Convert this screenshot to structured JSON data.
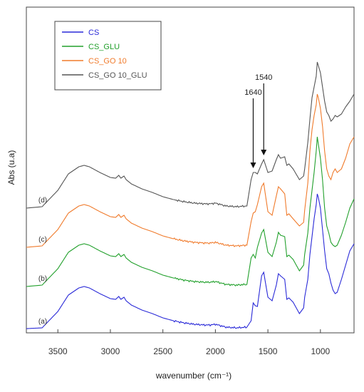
{
  "chart_data": {
    "type": "line",
    "title": "",
    "xlabel": "wavenumber (cm⁻¹)",
    "ylabel": "Abs (u.a)",
    "xlim": [
      3800,
      680
    ],
    "x_reversed": true,
    "xticks": [
      3500,
      3000,
      2500,
      2000,
      1500,
      1000
    ],
    "y_ticks_shown": false,
    "grid": false,
    "legend_position": "top-left",
    "series": [
      {
        "name": "CS",
        "curve_label": "(a)",
        "color": "#2a2ad8",
        "offset": 0,
        "points": [
          [
            3800,
            0.9
          ],
          [
            3650,
            2
          ],
          [
            3500,
            25
          ],
          [
            3400,
            48
          ],
          [
            3300,
            58
          ],
          [
            3250,
            60
          ],
          [
            3200,
            58
          ],
          [
            3100,
            50
          ],
          [
            3000,
            43
          ],
          [
            2950,
            42
          ],
          [
            2920,
            46
          ],
          [
            2900,
            42
          ],
          [
            2870,
            45
          ],
          [
            2850,
            40
          ],
          [
            2800,
            34
          ],
          [
            2700,
            27
          ],
          [
            2600,
            22
          ],
          [
            2500,
            16
          ],
          [
            2400,
            12
          ],
          [
            2300,
            9
          ],
          [
            2200,
            7
          ],
          [
            2100,
            6
          ],
          [
            2050,
            6
          ],
          [
            2000,
            7
          ],
          [
            1950,
            5
          ],
          [
            1900,
            3
          ],
          [
            1800,
            2
          ],
          [
            1700,
            3
          ],
          [
            1660,
            12
          ],
          [
            1640,
            37
          ],
          [
            1620,
            33
          ],
          [
            1600,
            32
          ],
          [
            1560,
            75
          ],
          [
            1540,
            80
          ],
          [
            1500,
            45
          ],
          [
            1460,
            40
          ],
          [
            1420,
            62
          ],
          [
            1400,
            78
          ],
          [
            1380,
            75
          ],
          [
            1340,
            70
          ],
          [
            1320,
            42
          ],
          [
            1300,
            44
          ],
          [
            1260,
            38
          ],
          [
            1200,
            22
          ],
          [
            1160,
            30
          ],
          [
            1150,
            45
          ],
          [
            1120,
            70
          ],
          [
            1100,
            105
          ],
          [
            1080,
            130
          ],
          [
            1060,
            155
          ],
          [
            1040,
            175
          ],
          [
            1030,
            190
          ],
          [
            1020,
            185
          ],
          [
            1000,
            170
          ],
          [
            980,
            140
          ],
          [
            960,
            110
          ],
          [
            940,
            85
          ],
          [
            920,
            78
          ],
          [
            900,
            65
          ],
          [
            880,
            55
          ],
          [
            860,
            50
          ],
          [
            840,
            52
          ],
          [
            800,
            70
          ],
          [
            760,
            90
          ],
          [
            720,
            110
          ],
          [
            680,
            120
          ]
        ]
      },
      {
        "name": "CS_GLU",
        "curve_label": "(b)",
        "color": "#22a02c",
        "offset": 60,
        "points": [
          [
            3800,
            0
          ],
          [
            3650,
            2
          ],
          [
            3500,
            25
          ],
          [
            3400,
            48
          ],
          [
            3300,
            58
          ],
          [
            3250,
            60
          ],
          [
            3200,
            58
          ],
          [
            3100,
            50
          ],
          [
            3000,
            43
          ],
          [
            2950,
            42
          ],
          [
            2920,
            46
          ],
          [
            2900,
            42
          ],
          [
            2870,
            45
          ],
          [
            2850,
            40
          ],
          [
            2800,
            34
          ],
          [
            2700,
            27
          ],
          [
            2600,
            22
          ],
          [
            2500,
            16
          ],
          [
            2400,
            12
          ],
          [
            2300,
            9
          ],
          [
            2200,
            7
          ],
          [
            2100,
            6
          ],
          [
            2050,
            6
          ],
          [
            2000,
            7
          ],
          [
            1950,
            5
          ],
          [
            1900,
            3
          ],
          [
            1800,
            2
          ],
          [
            1700,
            3
          ],
          [
            1660,
            40
          ],
          [
            1640,
            45
          ],
          [
            1620,
            40
          ],
          [
            1600,
            55
          ],
          [
            1560,
            75
          ],
          [
            1540,
            80
          ],
          [
            1500,
            48
          ],
          [
            1460,
            42
          ],
          [
            1420,
            62
          ],
          [
            1400,
            76
          ],
          [
            1380,
            72
          ],
          [
            1340,
            70
          ],
          [
            1320,
            42
          ],
          [
            1300,
            44
          ],
          [
            1260,
            38
          ],
          [
            1200,
            22
          ],
          [
            1160,
            30
          ],
          [
            1150,
            45
          ],
          [
            1120,
            75
          ],
          [
            1100,
            110
          ],
          [
            1080,
            135
          ],
          [
            1060,
            160
          ],
          [
            1040,
            190
          ],
          [
            1030,
            210
          ],
          [
            1020,
            200
          ],
          [
            1000,
            180
          ],
          [
            980,
            150
          ],
          [
            960,
            110
          ],
          [
            940,
            85
          ],
          [
            920,
            75
          ],
          [
            900,
            62
          ],
          [
            880,
            58
          ],
          [
            860,
            56
          ],
          [
            840,
            58
          ],
          [
            800,
            72
          ],
          [
            760,
            90
          ],
          [
            720,
            110
          ],
          [
            680,
            123
          ]
        ]
      },
      {
        "name": "CS_GO 10",
        "curve_label": "(c)",
        "color": "#f07b2c",
        "offset": 115,
        "points": [
          [
            3800,
            0
          ],
          [
            3650,
            2
          ],
          [
            3500,
            25
          ],
          [
            3400,
            48
          ],
          [
            3300,
            58
          ],
          [
            3250,
            60
          ],
          [
            3200,
            58
          ],
          [
            3100,
            50
          ],
          [
            3000,
            43
          ],
          [
            2950,
            42
          ],
          [
            2920,
            46
          ],
          [
            2900,
            42
          ],
          [
            2870,
            45
          ],
          [
            2850,
            40
          ],
          [
            2800,
            34
          ],
          [
            2700,
            27
          ],
          [
            2600,
            22
          ],
          [
            2500,
            16
          ],
          [
            2400,
            12
          ],
          [
            2300,
            9
          ],
          [
            2200,
            7
          ],
          [
            2100,
            6
          ],
          [
            2050,
            6
          ],
          [
            2000,
            7
          ],
          [
            1950,
            5
          ],
          [
            1900,
            3
          ],
          [
            1800,
            2
          ],
          [
            1700,
            3
          ],
          [
            1660,
            36
          ],
          [
            1640,
            48
          ],
          [
            1620,
            50
          ],
          [
            1600,
            60
          ],
          [
            1560,
            85
          ],
          [
            1540,
            90
          ],
          [
            1500,
            50
          ],
          [
            1460,
            45
          ],
          [
            1420,
            72
          ],
          [
            1400,
            85
          ],
          [
            1380,
            82
          ],
          [
            1340,
            75
          ],
          [
            1320,
            45
          ],
          [
            1300,
            47
          ],
          [
            1260,
            40
          ],
          [
            1200,
            30
          ],
          [
            1160,
            35
          ],
          [
            1150,
            52
          ],
          [
            1120,
            90
          ],
          [
            1100,
            135
          ],
          [
            1080,
            165
          ],
          [
            1060,
            185
          ],
          [
            1040,
            200
          ],
          [
            1030,
            215
          ],
          [
            1020,
            210
          ],
          [
            1000,
            195
          ],
          [
            980,
            170
          ],
          [
            960,
            135
          ],
          [
            940,
            110
          ],
          [
            920,
            100
          ],
          [
            900,
            95
          ],
          [
            880,
            105
          ],
          [
            860,
            110
          ],
          [
            840,
            105
          ],
          [
            800,
            110
          ],
          [
            760,
            125
          ],
          [
            720,
            145
          ],
          [
            680,
            155
          ]
        ]
      },
      {
        "name": "CS_GO 10_GLU",
        "curve_label": "(d)",
        "color": "#555555",
        "offset": 170,
        "points": [
          [
            3800,
            0
          ],
          [
            3650,
            2
          ],
          [
            3500,
            25
          ],
          [
            3400,
            48
          ],
          [
            3300,
            58
          ],
          [
            3250,
            60
          ],
          [
            3200,
            58
          ],
          [
            3100,
            50
          ],
          [
            3000,
            43
          ],
          [
            2950,
            42
          ],
          [
            2920,
            46
          ],
          [
            2900,
            42
          ],
          [
            2870,
            45
          ],
          [
            2850,
            40
          ],
          [
            2800,
            34
          ],
          [
            2700,
            27
          ],
          [
            2600,
            22
          ],
          [
            2500,
            16
          ],
          [
            2400,
            12
          ],
          [
            2300,
            9
          ],
          [
            2200,
            7
          ],
          [
            2100,
            6
          ],
          [
            2050,
            6
          ],
          [
            2000,
            7
          ],
          [
            1950,
            5
          ],
          [
            1900,
            3
          ],
          [
            1800,
            2
          ],
          [
            1700,
            3
          ],
          [
            1660,
            40
          ],
          [
            1640,
            50
          ],
          [
            1620,
            50
          ],
          [
            1600,
            48
          ],
          [
            1560,
            62
          ],
          [
            1540,
            68
          ],
          [
            1500,
            50
          ],
          [
            1460,
            52
          ],
          [
            1420,
            68
          ],
          [
            1400,
            75
          ],
          [
            1380,
            70
          ],
          [
            1340,
            72
          ],
          [
            1320,
            60
          ],
          [
            1300,
            62
          ],
          [
            1260,
            55
          ],
          [
            1200,
            40
          ],
          [
            1160,
            45
          ],
          [
            1150,
            55
          ],
          [
            1120,
            92
          ],
          [
            1100,
            125
          ],
          [
            1080,
            155
          ],
          [
            1060,
            170
          ],
          [
            1040,
            185
          ],
          [
            1030,
            205
          ],
          [
            1020,
            200
          ],
          [
            1000,
            190
          ],
          [
            980,
            170
          ],
          [
            960,
            150
          ],
          [
            940,
            135
          ],
          [
            920,
            130
          ],
          [
            900,
            122
          ],
          [
            880,
            125
          ],
          [
            860,
            130
          ],
          [
            840,
            128
          ],
          [
            800,
            132
          ],
          [
            760,
            142
          ],
          [
            720,
            150
          ],
          [
            680,
            160
          ]
        ]
      }
    ],
    "annotations": [
      {
        "text": "1640",
        "x": 1640
      },
      {
        "text": "1540",
        "x": 1540
      }
    ]
  }
}
